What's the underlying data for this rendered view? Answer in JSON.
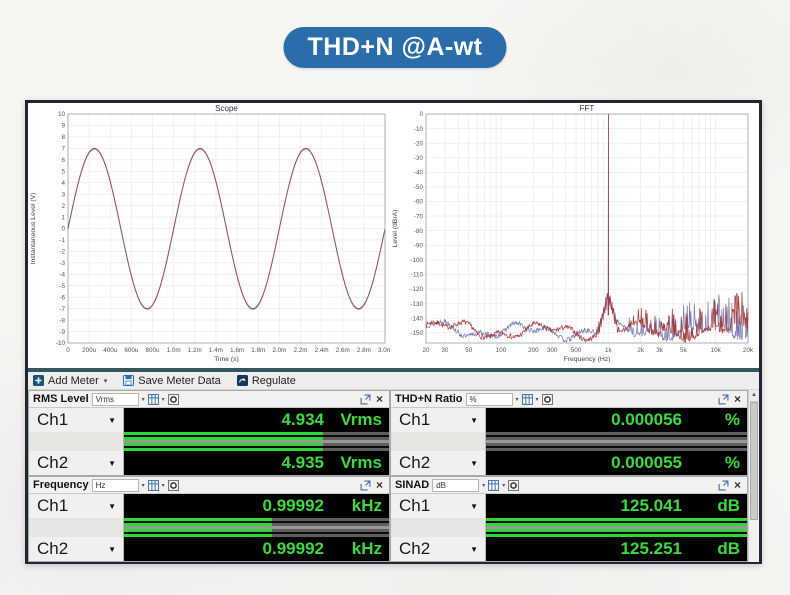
{
  "banner": {
    "title": "THD+N @A-wt",
    "bg_color": "#2b6cab"
  },
  "toolbar": {
    "add_meter": "Add Meter",
    "save_meter_data": "Save Meter Data",
    "regulate": "Regulate"
  },
  "icons": {
    "toolbar": [
      "add-meter-icon",
      "save-icon",
      "regulate-icon"
    ],
    "meter_header": [
      "chevron-down-icon",
      "display-mode-icon",
      "settings-icon",
      "popout-icon",
      "close-icon"
    ],
    "scrollbar": [
      "scroll-up-icon"
    ]
  },
  "colors": {
    "meter_green": "#2fd437",
    "meter_text_green": "#38d93c",
    "trace_red": "#a04f4f",
    "trace_blue": "#8585b5",
    "fft_red": "#a33a3a",
    "fft_blue": "#7878ae"
  },
  "chart_data": [
    {
      "type": "line",
      "title": "Scope",
      "xlabel": "Time (s)",
      "ylabel": "Instantaneous Level (V)",
      "ylim": [
        -10,
        10
      ],
      "y_ticks": [
        "10",
        "9",
        "8",
        "7",
        "6",
        "5",
        "4",
        "3",
        "2",
        "1",
        "0",
        "-1",
        "-2",
        "-3",
        "-4",
        "-5",
        "-6",
        "-7",
        "-8",
        "-9",
        "-10"
      ],
      "x_ticks": [
        "0",
        "200u",
        "400u",
        "600u",
        "800u",
        "1.0m",
        "1.2m",
        "1.4m",
        "1.6m",
        "1.8m",
        "2.0m",
        "2.2m",
        "2.4m",
        "2.6m",
        "2.8m",
        "3.0m"
      ],
      "duration_ms": 3,
      "grid": true,
      "series": [
        {
          "name": "Ch1",
          "waveform": "sine",
          "amplitude_v": 7,
          "frequency_hz": 1000,
          "color": "#a04f4f"
        },
        {
          "name": "Ch2",
          "waveform": "sine",
          "amplitude_v": 7,
          "frequency_hz": 1000,
          "color": "#8585b5"
        }
      ]
    },
    {
      "type": "line",
      "title": "FFT",
      "xlabel": "Frequency (Hz)",
      "ylabel": "Level (dBrA)",
      "xscale": "log",
      "xlim_hz": [
        20,
        20000
      ],
      "ylim": [
        -157,
        0
      ],
      "y_ticks": [
        "0",
        "-10",
        "-20",
        "-30",
        "-40",
        "-50",
        "-60",
        "-70",
        "-80",
        "-90",
        "-100",
        "-110",
        "-120",
        "-130",
        "-140",
        "-150"
      ],
      "x_ticks": [
        "20",
        "30",
        "50",
        "100",
        "200",
        "300",
        "500",
        "1k",
        "2k",
        "3k",
        "5k",
        "10k",
        "20k"
      ],
      "x_tick_values": [
        20,
        30,
        50,
        100,
        200,
        300,
        500,
        1000,
        2000,
        3000,
        5000,
        10000,
        20000
      ],
      "grid": true,
      "peak": {
        "frequency_hz": 1000,
        "level_db": 0
      },
      "noise_floor_db": -150,
      "series": [
        {
          "name": "Ch1",
          "color": "#a33a3a"
        },
        {
          "name": "Ch2",
          "color": "#7878ae"
        }
      ]
    }
  ],
  "meters": [
    {
      "title": "RMS Level",
      "unit_selector": "Vrms",
      "channels": [
        {
          "label": "Ch1",
          "value": "4.934",
          "unit": "Vrms",
          "bar_pct": 75
        },
        {
          "label": "Ch2",
          "value": "4.935",
          "unit": "Vrms",
          "bar_pct": 75
        }
      ]
    },
    {
      "title": "THD+N Ratio",
      "unit_selector": "%",
      "channels": [
        {
          "label": "Ch1",
          "value": "0.000056",
          "unit": "%",
          "bar_pct": 0
        },
        {
          "label": "Ch2",
          "value": "0.000055",
          "unit": "%",
          "bar_pct": 0
        }
      ]
    },
    {
      "title": "Frequency",
      "unit_selector": "Hz",
      "channels": [
        {
          "label": "Ch1",
          "value": "0.99992",
          "unit": "kHz",
          "bar_pct": 56
        },
        {
          "label": "Ch2",
          "value": "0.99992",
          "unit": "kHz",
          "bar_pct": 56
        }
      ]
    },
    {
      "title": "SINAD",
      "unit_selector": "dB",
      "channels": [
        {
          "label": "Ch1",
          "value": "125.041",
          "unit": "dB",
          "bar_pct": 100
        },
        {
          "label": "Ch2",
          "value": "125.251",
          "unit": "dB",
          "bar_pct": 100
        }
      ]
    }
  ]
}
